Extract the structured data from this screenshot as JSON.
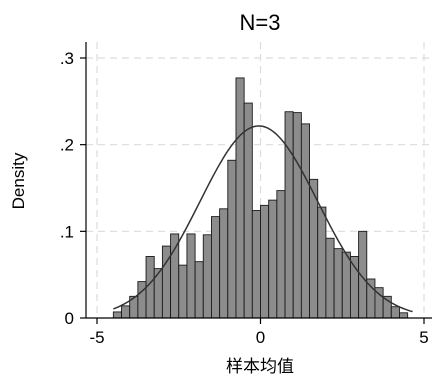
{
  "chart_data": {
    "type": "bar",
    "title": "N=3",
    "xlabel": "样本均值",
    "ylabel": "Density",
    "xlim": [
      -5,
      5
    ],
    "ylim": [
      0,
      0.3
    ],
    "xticks": [
      -5,
      0,
      5
    ],
    "xtick_labels": [
      "-5",
      "0",
      "5"
    ],
    "yticks": [
      0,
      0.1,
      0.2,
      0.3
    ],
    "ytick_labels": [
      "0",
      ".1",
      ".2",
      ".3"
    ],
    "grid": true,
    "legend": "none",
    "bin_width": 0.25,
    "bin_starts": [
      -4.5,
      -4.25,
      -4.0,
      -3.75,
      -3.5,
      -3.25,
      -3.0,
      -2.75,
      -2.5,
      -2.25,
      -2.0,
      -1.75,
      -1.5,
      -1.25,
      -1.0,
      -0.75,
      -0.5,
      -0.25,
      0.0,
      0.25,
      0.5,
      0.75,
      1.0,
      1.25,
      1.5,
      1.75,
      2.0,
      2.25,
      2.5,
      2.75,
      3.0,
      3.25,
      3.5,
      3.75,
      4.0,
      4.25,
      4.5
    ],
    "densities": [
      0.007,
      0.014,
      0.025,
      0.042,
      0.071,
      0.057,
      0.083,
      0.097,
      0.061,
      0.097,
      0.065,
      0.096,
      0.117,
      0.126,
      0.182,
      0.277,
      0.248,
      0.124,
      0.13,
      0.136,
      0.147,
      0.238,
      0.237,
      0.224,
      0.16,
      0.128,
      0.092,
      0.08,
      0.076,
      0.071,
      0.1,
      0.045,
      0.035,
      0.025,
      0.013,
      0.006,
      0.0
    ],
    "fitted_curve": {
      "type": "normal",
      "mean": -0.05,
      "sd": 1.8,
      "x_range": [
        -4.5,
        4.65
      ]
    },
    "colors": {
      "bar_fill": "#8c8c8c",
      "bar_stroke": "#1a1a1a",
      "curve": "#333333",
      "grid": "#dcdcdc",
      "axis": "#000000"
    }
  }
}
